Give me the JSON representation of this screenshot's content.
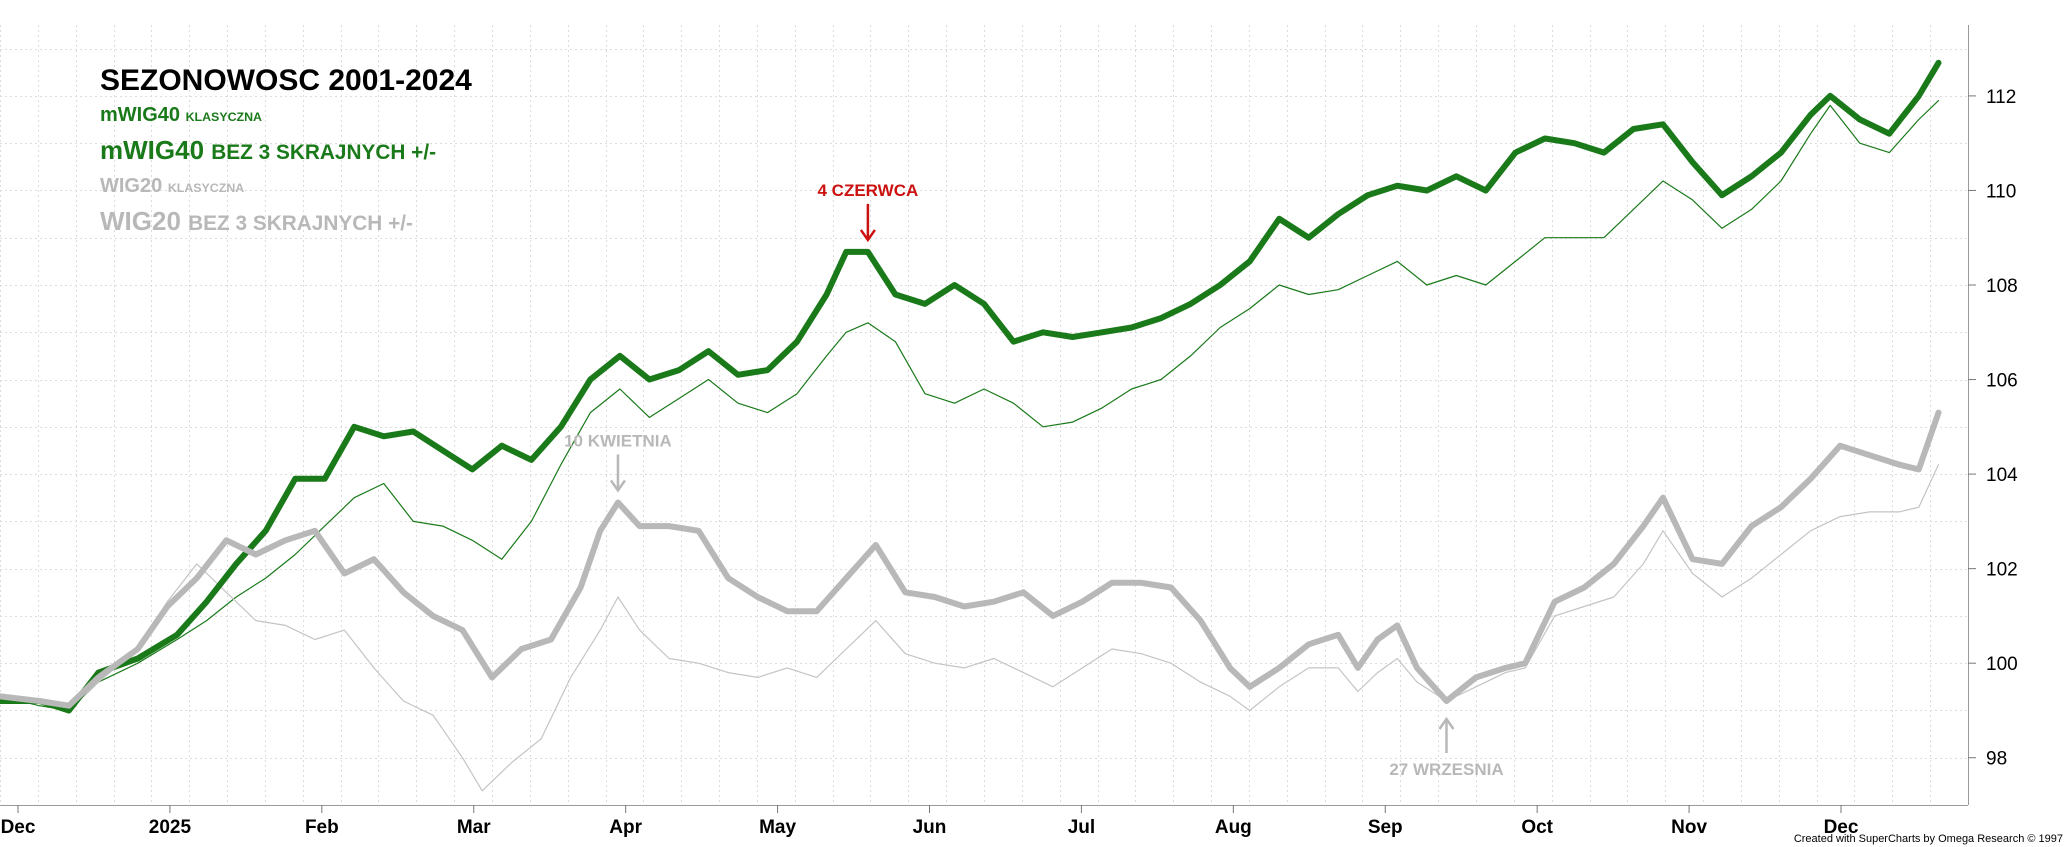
{
  "chart_data": {
    "type": "line",
    "title": "SEZONOWOSC 2001-2024",
    "x_ticks": [
      "Dec",
      "2025",
      "Feb",
      "Mar",
      "Apr",
      "May",
      "Jun",
      "Jul",
      "Aug",
      "Sep",
      "Oct",
      "Nov",
      "Dec"
    ],
    "y_ticks": [
      "98",
      "100",
      "102",
      "104",
      "106",
      "108",
      "110",
      "112"
    ],
    "ylim": [
      97,
      113.5
    ],
    "grid": true,
    "y_axis_side": "right",
    "legend_position": "top-left",
    "legend": [
      {
        "main": "mWIG40",
        "sub": "KLASYCZNA",
        "color": "#1a7a1a",
        "style": "thin"
      },
      {
        "main": "mWIG40",
        "sub": "BEZ 3 SKRAJNYCH +/-",
        "color": "#1a7a1a",
        "style": "thick"
      },
      {
        "main": "WIG20",
        "sub": "KLASYCZNA",
        "color": "#b8b8b8",
        "style": "thin"
      },
      {
        "main": "WIG20",
        "sub": "BEZ 3 SKRAJNYCH +/-",
        "color": "#b8b8b8",
        "style": "thick"
      }
    ],
    "annotations": [
      {
        "text": "4 CZERWCA",
        "x": 0.441,
        "y": 108.7,
        "color": "#cc1111",
        "arrow": "down"
      },
      {
        "text": "10 KWIETNIA",
        "x": 0.314,
        "y": 103.4,
        "color": "#b8b8b8",
        "arrow": "down"
      },
      {
        "text": "27 WRZESNIA",
        "x": 0.735,
        "y": 99.2,
        "color": "#b8b8b8",
        "arrow": "up"
      }
    ],
    "series": [
      {
        "name": "mWIG40 BEZ 3 SKRAJNYCH +/-",
        "color": "#1a7a1a",
        "width": 6,
        "points": [
          [
            0.0,
            99.2
          ],
          [
            0.02,
            99.2
          ],
          [
            0.035,
            99.0
          ],
          [
            0.05,
            99.8
          ],
          [
            0.07,
            100.1
          ],
          [
            0.09,
            100.6
          ],
          [
            0.105,
            101.3
          ],
          [
            0.12,
            102.1
          ],
          [
            0.135,
            102.8
          ],
          [
            0.15,
            103.9
          ],
          [
            0.165,
            103.9
          ],
          [
            0.18,
            105.0
          ],
          [
            0.195,
            104.8
          ],
          [
            0.21,
            104.9
          ],
          [
            0.225,
            104.5
          ],
          [
            0.24,
            104.1
          ],
          [
            0.255,
            104.6
          ],
          [
            0.27,
            104.3
          ],
          [
            0.285,
            105.0
          ],
          [
            0.3,
            106.0
          ],
          [
            0.315,
            106.5
          ],
          [
            0.33,
            106.0
          ],
          [
            0.345,
            106.2
          ],
          [
            0.36,
            106.6
          ],
          [
            0.375,
            106.1
          ],
          [
            0.39,
            106.2
          ],
          [
            0.405,
            106.8
          ],
          [
            0.42,
            107.8
          ],
          [
            0.43,
            108.7
          ],
          [
            0.441,
            108.7
          ],
          [
            0.455,
            107.8
          ],
          [
            0.47,
            107.6
          ],
          [
            0.485,
            108.0
          ],
          [
            0.5,
            107.6
          ],
          [
            0.515,
            106.8
          ],
          [
            0.53,
            107.0
          ],
          [
            0.545,
            106.9
          ],
          [
            0.56,
            107.0
          ],
          [
            0.575,
            107.1
          ],
          [
            0.59,
            107.3
          ],
          [
            0.605,
            107.6
          ],
          [
            0.62,
            108.0
          ],
          [
            0.635,
            108.5
          ],
          [
            0.65,
            109.4
          ],
          [
            0.665,
            109.0
          ],
          [
            0.68,
            109.5
          ],
          [
            0.695,
            109.9
          ],
          [
            0.71,
            110.1
          ],
          [
            0.725,
            110.0
          ],
          [
            0.74,
            110.3
          ],
          [
            0.755,
            110.0
          ],
          [
            0.77,
            110.8
          ],
          [
            0.785,
            111.1
          ],
          [
            0.8,
            111.0
          ],
          [
            0.815,
            110.8
          ],
          [
            0.83,
            111.3
          ],
          [
            0.845,
            111.4
          ],
          [
            0.86,
            110.6
          ],
          [
            0.875,
            109.9
          ],
          [
            0.89,
            110.3
          ],
          [
            0.905,
            110.8
          ],
          [
            0.92,
            111.6
          ],
          [
            0.93,
            112.0
          ],
          [
            0.945,
            111.5
          ],
          [
            0.96,
            111.2
          ],
          [
            0.975,
            112.0
          ],
          [
            0.985,
            112.7
          ]
        ]
      },
      {
        "name": "mWIG40 KLASYCZNA",
        "color": "#1a7a1a",
        "width": 1.2,
        "points": [
          [
            0.0,
            99.3
          ],
          [
            0.02,
            99.1
          ],
          [
            0.035,
            99.0
          ],
          [
            0.05,
            99.6
          ],
          [
            0.07,
            100.0
          ],
          [
            0.09,
            100.5
          ],
          [
            0.105,
            100.9
          ],
          [
            0.12,
            101.4
          ],
          [
            0.135,
            101.8
          ],
          [
            0.15,
            102.3
          ],
          [
            0.165,
            102.9
          ],
          [
            0.18,
            103.5
          ],
          [
            0.195,
            103.8
          ],
          [
            0.21,
            103.0
          ],
          [
            0.225,
            102.9
          ],
          [
            0.24,
            102.6
          ],
          [
            0.255,
            102.2
          ],
          [
            0.27,
            103.0
          ],
          [
            0.285,
            104.2
          ],
          [
            0.3,
            105.3
          ],
          [
            0.315,
            105.8
          ],
          [
            0.33,
            105.2
          ],
          [
            0.345,
            105.6
          ],
          [
            0.36,
            106.0
          ],
          [
            0.375,
            105.5
          ],
          [
            0.39,
            105.3
          ],
          [
            0.405,
            105.7
          ],
          [
            0.42,
            106.5
          ],
          [
            0.43,
            107.0
          ],
          [
            0.441,
            107.2
          ],
          [
            0.455,
            106.8
          ],
          [
            0.47,
            105.7
          ],
          [
            0.485,
            105.5
          ],
          [
            0.5,
            105.8
          ],
          [
            0.515,
            105.5
          ],
          [
            0.53,
            105.0
          ],
          [
            0.545,
            105.1
          ],
          [
            0.56,
            105.4
          ],
          [
            0.575,
            105.8
          ],
          [
            0.59,
            106.0
          ],
          [
            0.605,
            106.5
          ],
          [
            0.62,
            107.1
          ],
          [
            0.635,
            107.5
          ],
          [
            0.65,
            108.0
          ],
          [
            0.665,
            107.8
          ],
          [
            0.68,
            107.9
          ],
          [
            0.695,
            108.2
          ],
          [
            0.71,
            108.5
          ],
          [
            0.725,
            108.0
          ],
          [
            0.74,
            108.2
          ],
          [
            0.755,
            108.0
          ],
          [
            0.77,
            108.5
          ],
          [
            0.785,
            109.0
          ],
          [
            0.8,
            109.0
          ],
          [
            0.815,
            109.0
          ],
          [
            0.83,
            109.6
          ],
          [
            0.845,
            110.2
          ],
          [
            0.86,
            109.8
          ],
          [
            0.875,
            109.2
          ],
          [
            0.89,
            109.6
          ],
          [
            0.905,
            110.2
          ],
          [
            0.92,
            111.2
          ],
          [
            0.93,
            111.8
          ],
          [
            0.945,
            111.0
          ],
          [
            0.96,
            110.8
          ],
          [
            0.975,
            111.5
          ],
          [
            0.985,
            111.9
          ]
        ]
      },
      {
        "name": "WIG20 BEZ 3 SKRAJNYCH +/-",
        "color": "#b8b8b8",
        "width": 6,
        "points": [
          [
            0.0,
            99.3
          ],
          [
            0.02,
            99.2
          ],
          [
            0.035,
            99.1
          ],
          [
            0.05,
            99.7
          ],
          [
            0.07,
            100.3
          ],
          [
            0.085,
            101.2
          ],
          [
            0.1,
            101.8
          ],
          [
            0.115,
            102.6
          ],
          [
            0.13,
            102.3
          ],
          [
            0.145,
            102.6
          ],
          [
            0.16,
            102.8
          ],
          [
            0.175,
            101.9
          ],
          [
            0.19,
            102.2
          ],
          [
            0.205,
            101.5
          ],
          [
            0.22,
            101.0
          ],
          [
            0.235,
            100.7
          ],
          [
            0.25,
            99.7
          ],
          [
            0.265,
            100.3
          ],
          [
            0.28,
            100.5
          ],
          [
            0.295,
            101.6
          ],
          [
            0.305,
            102.8
          ],
          [
            0.314,
            103.4
          ],
          [
            0.325,
            102.9
          ],
          [
            0.34,
            102.9
          ],
          [
            0.355,
            102.8
          ],
          [
            0.37,
            101.8
          ],
          [
            0.385,
            101.4
          ],
          [
            0.4,
            101.1
          ],
          [
            0.415,
            101.1
          ],
          [
            0.43,
            101.8
          ],
          [
            0.445,
            102.5
          ],
          [
            0.46,
            101.5
          ],
          [
            0.475,
            101.4
          ],
          [
            0.49,
            101.2
          ],
          [
            0.505,
            101.3
          ],
          [
            0.52,
            101.5
          ],
          [
            0.535,
            101.0
          ],
          [
            0.55,
            101.3
          ],
          [
            0.565,
            101.7
          ],
          [
            0.58,
            101.7
          ],
          [
            0.595,
            101.6
          ],
          [
            0.61,
            100.9
          ],
          [
            0.625,
            99.9
          ],
          [
            0.635,
            99.5
          ],
          [
            0.65,
            99.9
          ],
          [
            0.665,
            100.4
          ],
          [
            0.68,
            100.6
          ],
          [
            0.69,
            99.9
          ],
          [
            0.7,
            100.5
          ],
          [
            0.71,
            100.8
          ],
          [
            0.72,
            99.9
          ],
          [
            0.735,
            99.2
          ],
          [
            0.75,
            99.7
          ],
          [
            0.765,
            99.9
          ],
          [
            0.775,
            100.0
          ],
          [
            0.79,
            101.3
          ],
          [
            0.805,
            101.6
          ],
          [
            0.82,
            102.1
          ],
          [
            0.835,
            102.9
          ],
          [
            0.845,
            103.5
          ],
          [
            0.86,
            102.2
          ],
          [
            0.875,
            102.1
          ],
          [
            0.89,
            102.9
          ],
          [
            0.905,
            103.3
          ],
          [
            0.92,
            103.9
          ],
          [
            0.935,
            104.6
          ],
          [
            0.95,
            104.4
          ],
          [
            0.965,
            104.2
          ],
          [
            0.975,
            104.1
          ],
          [
            0.985,
            105.3
          ]
        ]
      },
      {
        "name": "WIG20 KLASYCZNA",
        "color": "#c4c4c4",
        "width": 1.2,
        "points": [
          [
            0.0,
            99.3
          ],
          [
            0.02,
            99.2
          ],
          [
            0.035,
            99.0
          ],
          [
            0.05,
            99.6
          ],
          [
            0.07,
            100.3
          ],
          [
            0.085,
            101.3
          ],
          [
            0.1,
            102.1
          ],
          [
            0.115,
            101.5
          ],
          [
            0.13,
            100.9
          ],
          [
            0.145,
            100.8
          ],
          [
            0.16,
            100.5
          ],
          [
            0.175,
            100.7
          ],
          [
            0.19,
            99.9
          ],
          [
            0.205,
            99.2
          ],
          [
            0.22,
            98.9
          ],
          [
            0.235,
            98.0
          ],
          [
            0.245,
            97.3
          ],
          [
            0.26,
            97.9
          ],
          [
            0.275,
            98.4
          ],
          [
            0.29,
            99.7
          ],
          [
            0.305,
            100.7
          ],
          [
            0.314,
            101.4
          ],
          [
            0.325,
            100.7
          ],
          [
            0.34,
            100.1
          ],
          [
            0.355,
            100.0
          ],
          [
            0.37,
            99.8
          ],
          [
            0.385,
            99.7
          ],
          [
            0.4,
            99.9
          ],
          [
            0.415,
            99.7
          ],
          [
            0.43,
            100.3
          ],
          [
            0.445,
            100.9
          ],
          [
            0.46,
            100.2
          ],
          [
            0.475,
            100.0
          ],
          [
            0.49,
            99.9
          ],
          [
            0.505,
            100.1
          ],
          [
            0.52,
            99.8
          ],
          [
            0.535,
            99.5
          ],
          [
            0.55,
            99.9
          ],
          [
            0.565,
            100.3
          ],
          [
            0.58,
            100.2
          ],
          [
            0.595,
            100.0
          ],
          [
            0.61,
            99.6
          ],
          [
            0.625,
            99.3
          ],
          [
            0.635,
            99.0
          ],
          [
            0.65,
            99.5
          ],
          [
            0.665,
            99.9
          ],
          [
            0.68,
            99.9
          ],
          [
            0.69,
            99.4
          ],
          [
            0.7,
            99.8
          ],
          [
            0.71,
            100.1
          ],
          [
            0.72,
            99.6
          ],
          [
            0.735,
            99.2
          ],
          [
            0.75,
            99.5
          ],
          [
            0.765,
            99.8
          ],
          [
            0.775,
            99.9
          ],
          [
            0.79,
            101.0
          ],
          [
            0.805,
            101.2
          ],
          [
            0.82,
            101.4
          ],
          [
            0.835,
            102.1
          ],
          [
            0.845,
            102.8
          ],
          [
            0.86,
            101.9
          ],
          [
            0.875,
            101.4
          ],
          [
            0.89,
            101.8
          ],
          [
            0.905,
            102.3
          ],
          [
            0.92,
            102.8
          ],
          [
            0.935,
            103.1
          ],
          [
            0.95,
            103.2
          ],
          [
            0.965,
            103.2
          ],
          [
            0.975,
            103.3
          ],
          [
            0.985,
            104.2
          ]
        ]
      }
    ]
  },
  "credit": "Created with SuperCharts by Omega Research © 1997"
}
